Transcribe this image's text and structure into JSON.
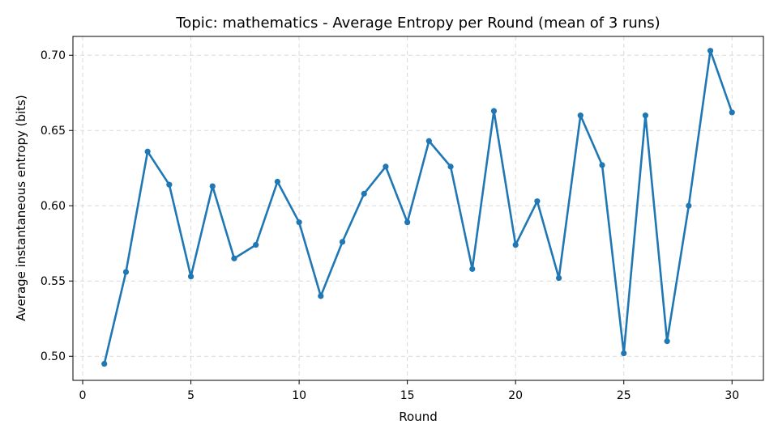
{
  "chart_data": {
    "type": "line",
    "title": "Topic: mathematics - Average Entropy per Round (mean of 3 runs)",
    "xlabel": "Round",
    "ylabel": "Average instantaneous entropy (bits)",
    "xlim": [
      -0.45,
      31.45
    ],
    "ylim": [
      0.484,
      0.7125
    ],
    "xticks": [
      0,
      5,
      10,
      15,
      20,
      25,
      30
    ],
    "yticks": [
      0.5,
      0.55,
      0.6,
      0.65,
      0.7
    ],
    "ytick_labels": [
      "0.50",
      "0.55",
      "0.60",
      "0.65",
      "0.70"
    ],
    "grid": true,
    "color": "#1f77b4",
    "series": [
      {
        "x": [
          1,
          2,
          3,
          4,
          5,
          6,
          7,
          8,
          9,
          10,
          11,
          12,
          13,
          14,
          15,
          16,
          17,
          18,
          19,
          20,
          21,
          22,
          23,
          24,
          25,
          26,
          27,
          28,
          29,
          30
        ],
        "values": [
          0.495,
          0.556,
          0.636,
          0.614,
          0.553,
          0.613,
          0.565,
          0.574,
          0.616,
          0.589,
          0.54,
          0.576,
          0.608,
          0.626,
          0.589,
          0.643,
          0.626,
          0.558,
          0.663,
          0.574,
          0.603,
          0.552,
          0.66,
          0.627,
          0.502,
          0.66,
          0.51,
          0.6,
          0.703,
          0.662
        ]
      }
    ]
  }
}
